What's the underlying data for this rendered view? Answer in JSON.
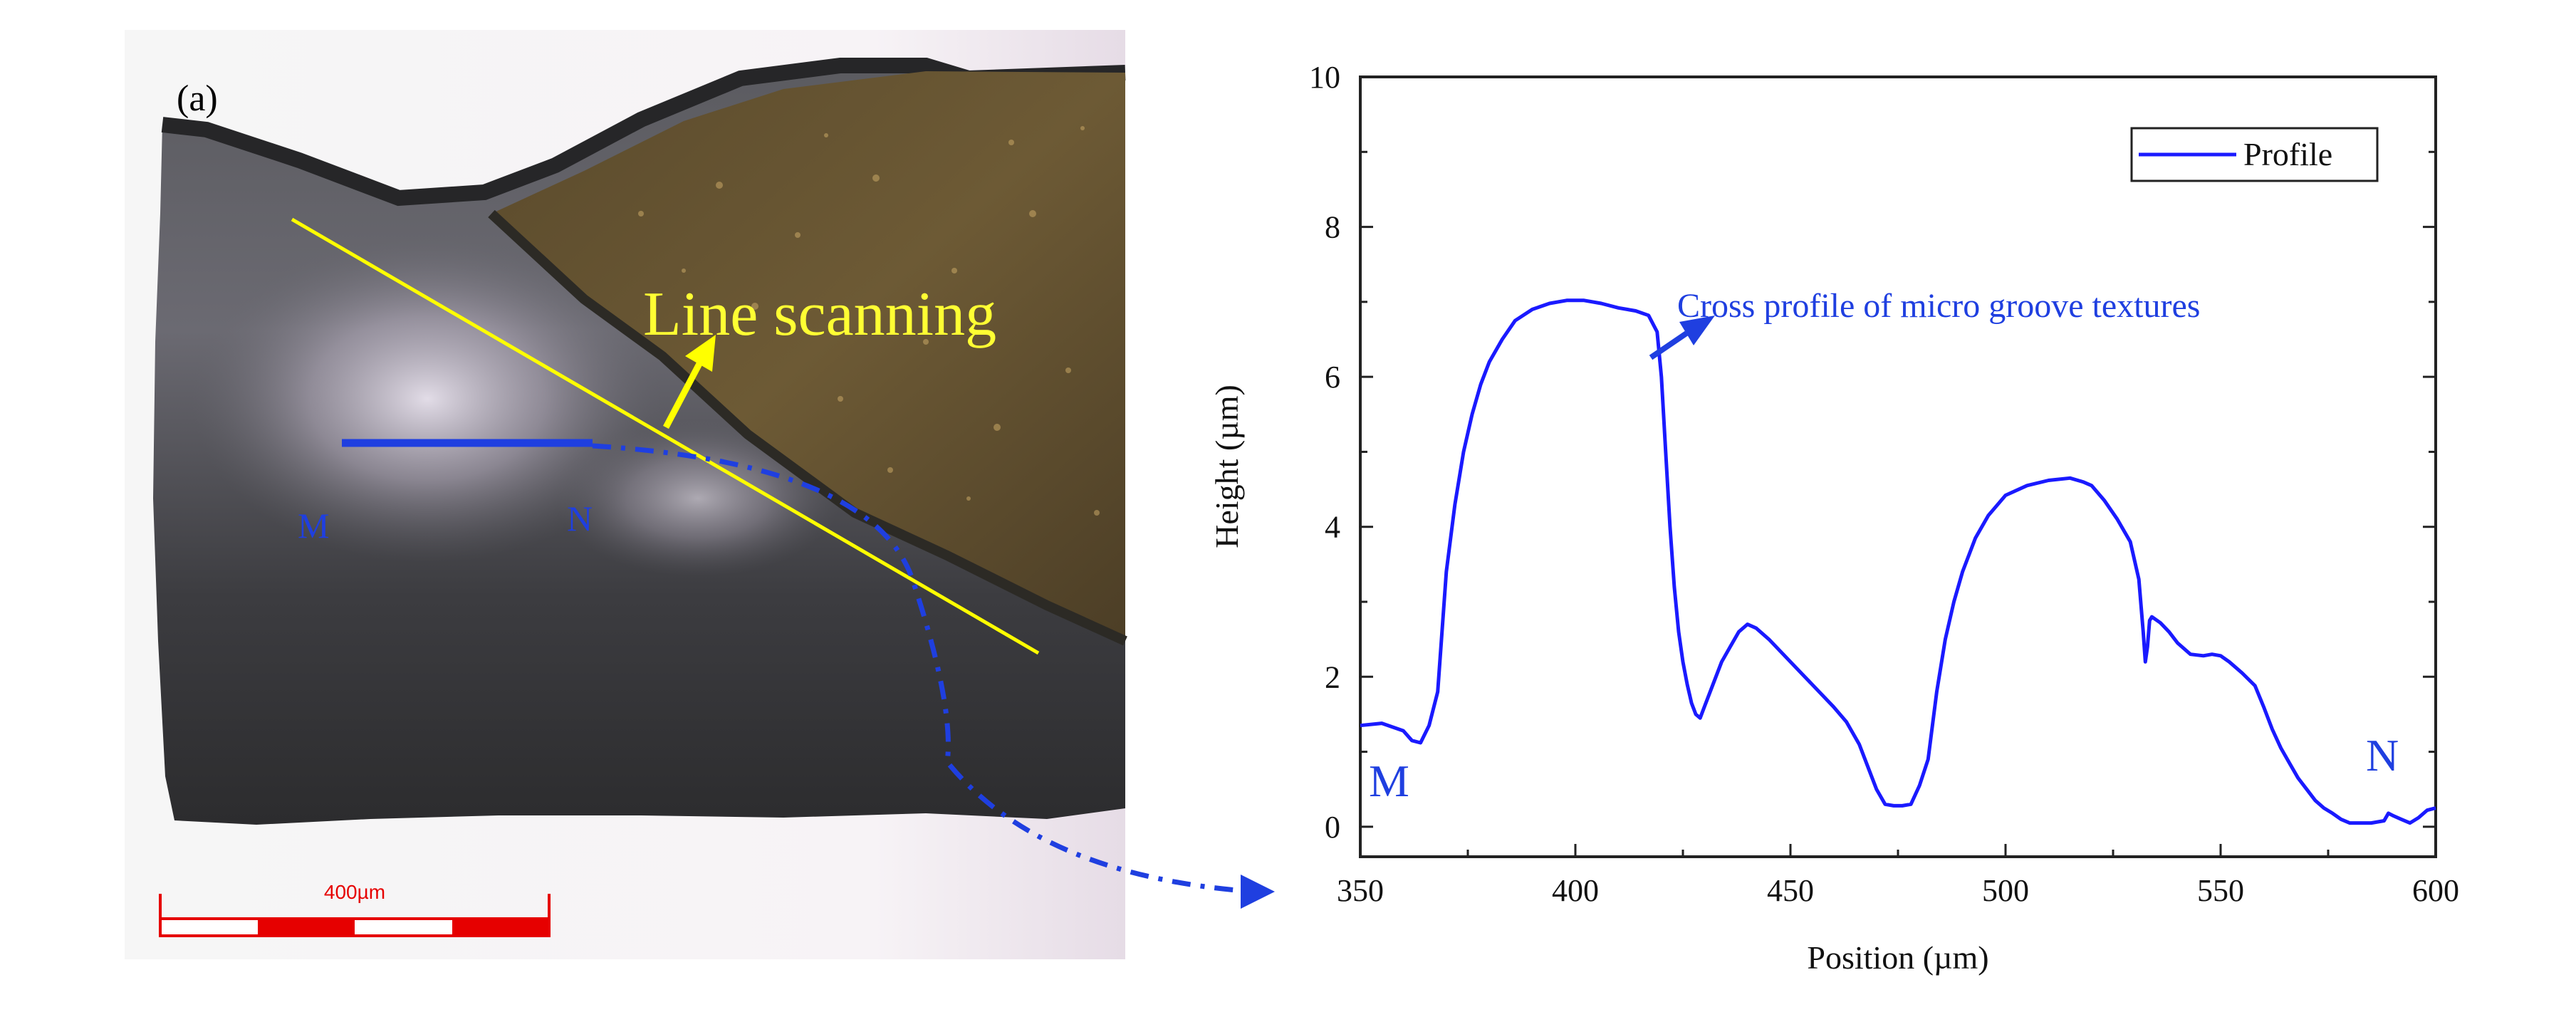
{
  "micrograph": {
    "panel_label": "(a)",
    "scan_label": "Line scanning",
    "point_m": "M",
    "point_n": "N",
    "scale_bar_label": "400µm"
  },
  "colors": {
    "profile_line": "#1a1aff",
    "scan_line": "#ffff00",
    "scan_text": "#ffff33",
    "marker_blue": "#1f3fe0",
    "scale_red": "#e60000"
  },
  "chart_data": {
    "type": "line",
    "title": "",
    "xlabel": "Position (µm)",
    "ylabel": "Height (µm)",
    "xlim": [
      350,
      600
    ],
    "ylim": [
      -0.4,
      10
    ],
    "xticks": [
      350,
      400,
      450,
      500,
      550,
      600
    ],
    "yticks": [
      0,
      2,
      4,
      6,
      8,
      10
    ],
    "legend": {
      "entries": [
        "Profile"
      ],
      "position": "top-right"
    },
    "annotations": {
      "cross_profile": "Cross profile of micro groove textures",
      "start_marker": "M",
      "end_marker": "N"
    },
    "series": [
      {
        "name": "Profile",
        "x": [
          350,
          355,
          360,
          362,
          364,
          366,
          368,
          370,
          372,
          374,
          376,
          378,
          380,
          383,
          386,
          390,
          394,
          398,
          402,
          406,
          410,
          414,
          417,
          419,
          420,
          421,
          422,
          423,
          424,
          425,
          426,
          427,
          428,
          429,
          430,
          432,
          434,
          436,
          438,
          440,
          442,
          445,
          450,
          455,
          460,
          463,
          466,
          468,
          470,
          472,
          474,
          476,
          478,
          480,
          482,
          484,
          486,
          488,
          490,
          493,
          496,
          500,
          505,
          510,
          515,
          518,
          520,
          523,
          526,
          529,
          531,
          532,
          532.5,
          533,
          533.5,
          534,
          536,
          538,
          540,
          543,
          546,
          548,
          550,
          552,
          555,
          558,
          560,
          562,
          564,
          566,
          568,
          570,
          572,
          574,
          576,
          578,
          580,
          582,
          585,
          588,
          589,
          590,
          592,
          594,
          596,
          598,
          600
        ],
        "y": [
          1.35,
          1.38,
          1.28,
          1.15,
          1.12,
          1.35,
          1.8,
          3.4,
          4.3,
          5.0,
          5.5,
          5.9,
          6.2,
          6.5,
          6.75,
          6.9,
          6.98,
          7.02,
          7.02,
          6.98,
          6.92,
          6.88,
          6.82,
          6.6,
          6.0,
          5.0,
          4.0,
          3.2,
          2.6,
          2.2,
          1.9,
          1.65,
          1.5,
          1.45,
          1.6,
          1.9,
          2.2,
          2.4,
          2.6,
          2.7,
          2.65,
          2.5,
          2.2,
          1.9,
          1.6,
          1.4,
          1.1,
          0.8,
          0.5,
          0.3,
          0.28,
          0.28,
          0.3,
          0.55,
          0.9,
          1.8,
          2.5,
          3.0,
          3.4,
          3.85,
          4.15,
          4.42,
          4.55,
          4.62,
          4.65,
          4.6,
          4.55,
          4.35,
          4.1,
          3.8,
          3.3,
          2.6,
          2.2,
          2.4,
          2.75,
          2.8,
          2.72,
          2.6,
          2.45,
          2.3,
          2.28,
          2.3,
          2.28,
          2.2,
          2.05,
          1.88,
          1.6,
          1.3,
          1.05,
          0.85,
          0.65,
          0.5,
          0.35,
          0.25,
          0.18,
          0.1,
          0.05,
          0.05,
          0.05,
          0.08,
          0.18,
          0.15,
          0.1,
          0.05,
          0.12,
          0.22,
          0.25
        ]
      }
    ]
  }
}
